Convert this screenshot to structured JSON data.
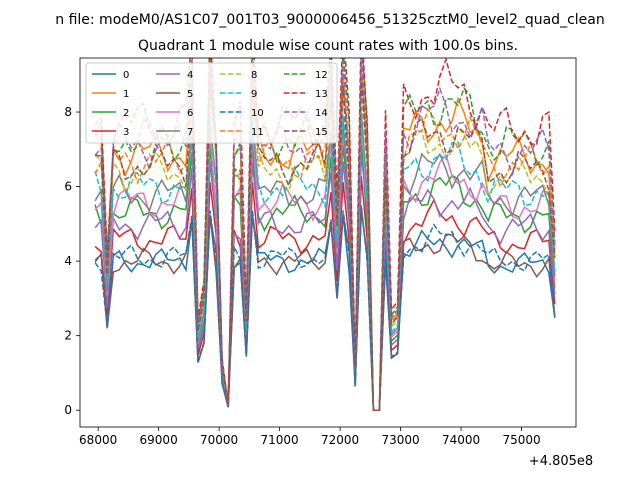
{
  "figure_title": "n file: modeM0/AS1C07_001T03_9000006456_51325cztM0_level2_quad_clean",
  "chart_data": {
    "type": "line",
    "title": "Quadrant 1 module wise count rates with 100.0s bins.",
    "xlabel": "",
    "ylabel": "",
    "x_offset_label": "+4.805e8",
    "x_ticks": [
      68000,
      69000,
      70000,
      71000,
      72000,
      73000,
      74000,
      75000
    ],
    "y_ticks": [
      0,
      2,
      4,
      6,
      8
    ],
    "xlim": [
      67700,
      75900
    ],
    "ylim": [
      -0.45,
      9.45
    ],
    "grid": false,
    "legend_position": "top-left",
    "x_range": [
      67950,
      75550
    ],
    "x_step": 100,
    "series": [
      {
        "name": "0",
        "color": "#1f77b4",
        "dash": false,
        "base": 4.0,
        "amp": 0.7
      },
      {
        "name": "1",
        "color": "#ff7f0e",
        "dash": false,
        "base": 6.9,
        "amp": 1.2
      },
      {
        "name": "2",
        "color": "#2ca02c",
        "dash": false,
        "base": 5.3,
        "amp": 1.1
      },
      {
        "name": "3",
        "color": "#d62728",
        "dash": false,
        "base": 4.6,
        "amp": 0.9
      },
      {
        "name": "4",
        "color": "#9467bd",
        "dash": false,
        "base": 5.0,
        "amp": 1.0
      },
      {
        "name": "5",
        "color": "#8c564b",
        "dash": false,
        "base": 4.0,
        "amp": 0.7
      },
      {
        "name": "6",
        "color": "#e377c2",
        "dash": false,
        "base": 5.6,
        "amp": 1.1
      },
      {
        "name": "7",
        "color": "#7f7f7f",
        "dash": false,
        "base": 5.8,
        "amp": 1.2
      },
      {
        "name": "8",
        "color": "#bcbd22",
        "dash": true,
        "base": 6.4,
        "amp": 1.2
      },
      {
        "name": "9",
        "color": "#17becf",
        "dash": true,
        "base": 6.0,
        "amp": 1.1
      },
      {
        "name": "10",
        "color": "#1f77b4",
        "dash": true,
        "base": 4.1,
        "amp": 0.7
      },
      {
        "name": "11",
        "color": "#ff7f0e",
        "dash": true,
        "base": 6.7,
        "amp": 1.3
      },
      {
        "name": "12",
        "color": "#2ca02c",
        "dash": true,
        "base": 7.3,
        "amp": 1.4
      },
      {
        "name": "13",
        "color": "#d62728",
        "dash": true,
        "base": 7.7,
        "amp": 1.5
      },
      {
        "name": "14",
        "color": "#9467bd",
        "dash": true,
        "base": 7.1,
        "amp": 1.3
      },
      {
        "name": "15",
        "color": "#8c564b",
        "dash": true,
        "base": 6.6,
        "amp": 1.2
      }
    ],
    "dips": [
      {
        "x": 68150,
        "f": 0.55
      },
      {
        "x": 69650,
        "f": 0.32
      },
      {
        "x": 69750,
        "f": 0.45
      },
      {
        "x": 70050,
        "f": 0.18
      },
      {
        "x": 70150,
        "f": 0.02
      },
      {
        "x": 70450,
        "f": 0.36
      },
      {
        "x": 71950,
        "f": 0.75
      },
      {
        "x": 72250,
        "f": 0.16
      },
      {
        "x": 72550,
        "f": 0.0
      },
      {
        "x": 72650,
        "f": 0.0
      },
      {
        "x": 72850,
        "f": 0.35
      },
      {
        "x": 72950,
        "f": 0.38
      },
      {
        "x": 75550,
        "f": 0.62
      }
    ],
    "peaks": [
      {
        "x": 69550,
        "f": 1.12
      },
      {
        "x": 69850,
        "f": 1.15
      },
      {
        "x": 70550,
        "f": 1.15
      },
      {
        "x": 71850,
        "f": 1.1
      },
      {
        "x": 72050,
        "f": 1.15
      },
      {
        "x": 72350,
        "f": 1.18
      }
    ]
  }
}
